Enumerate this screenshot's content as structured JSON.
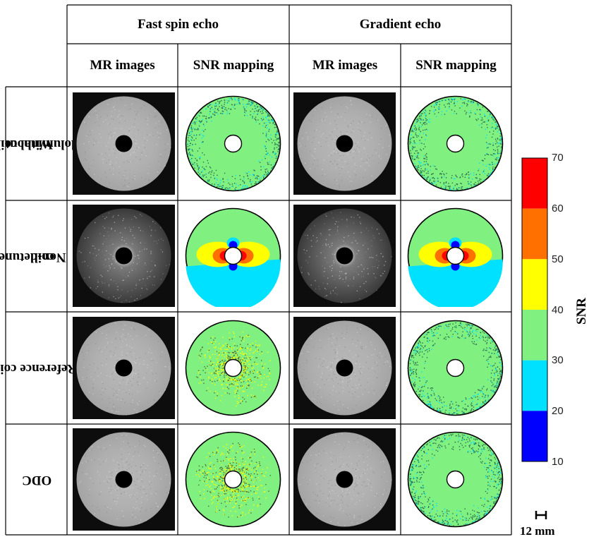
{
  "header": {
    "group_fse": "Fast spin echo",
    "group_gre": "Gradient echo",
    "col_mr_1": "MR images",
    "col_snr_1": "SNR mapping",
    "col_mr_2": "MR images",
    "col_snr_2": "SNR mapping"
  },
  "rows": [
    {
      "line1": "Without",
      "line2": "endoluminal coil"
    },
    {
      "line1": "Non-detuned",
      "line2": "coil"
    },
    {
      "line1": "Reference coil",
      "line2": ""
    },
    {
      "line1": "ODC",
      "line2": ""
    }
  ],
  "colorbar": {
    "title": "SNR",
    "ticks": [
      "70",
      "60",
      "50",
      "40",
      "30",
      "20",
      "10"
    ],
    "colors": [
      "#ff0000",
      "#ff7000",
      "#ffff00",
      "#80f080",
      "#00e0ff",
      "#0000ff"
    ]
  },
  "scale_bar": {
    "label": "12 mm"
  }
}
